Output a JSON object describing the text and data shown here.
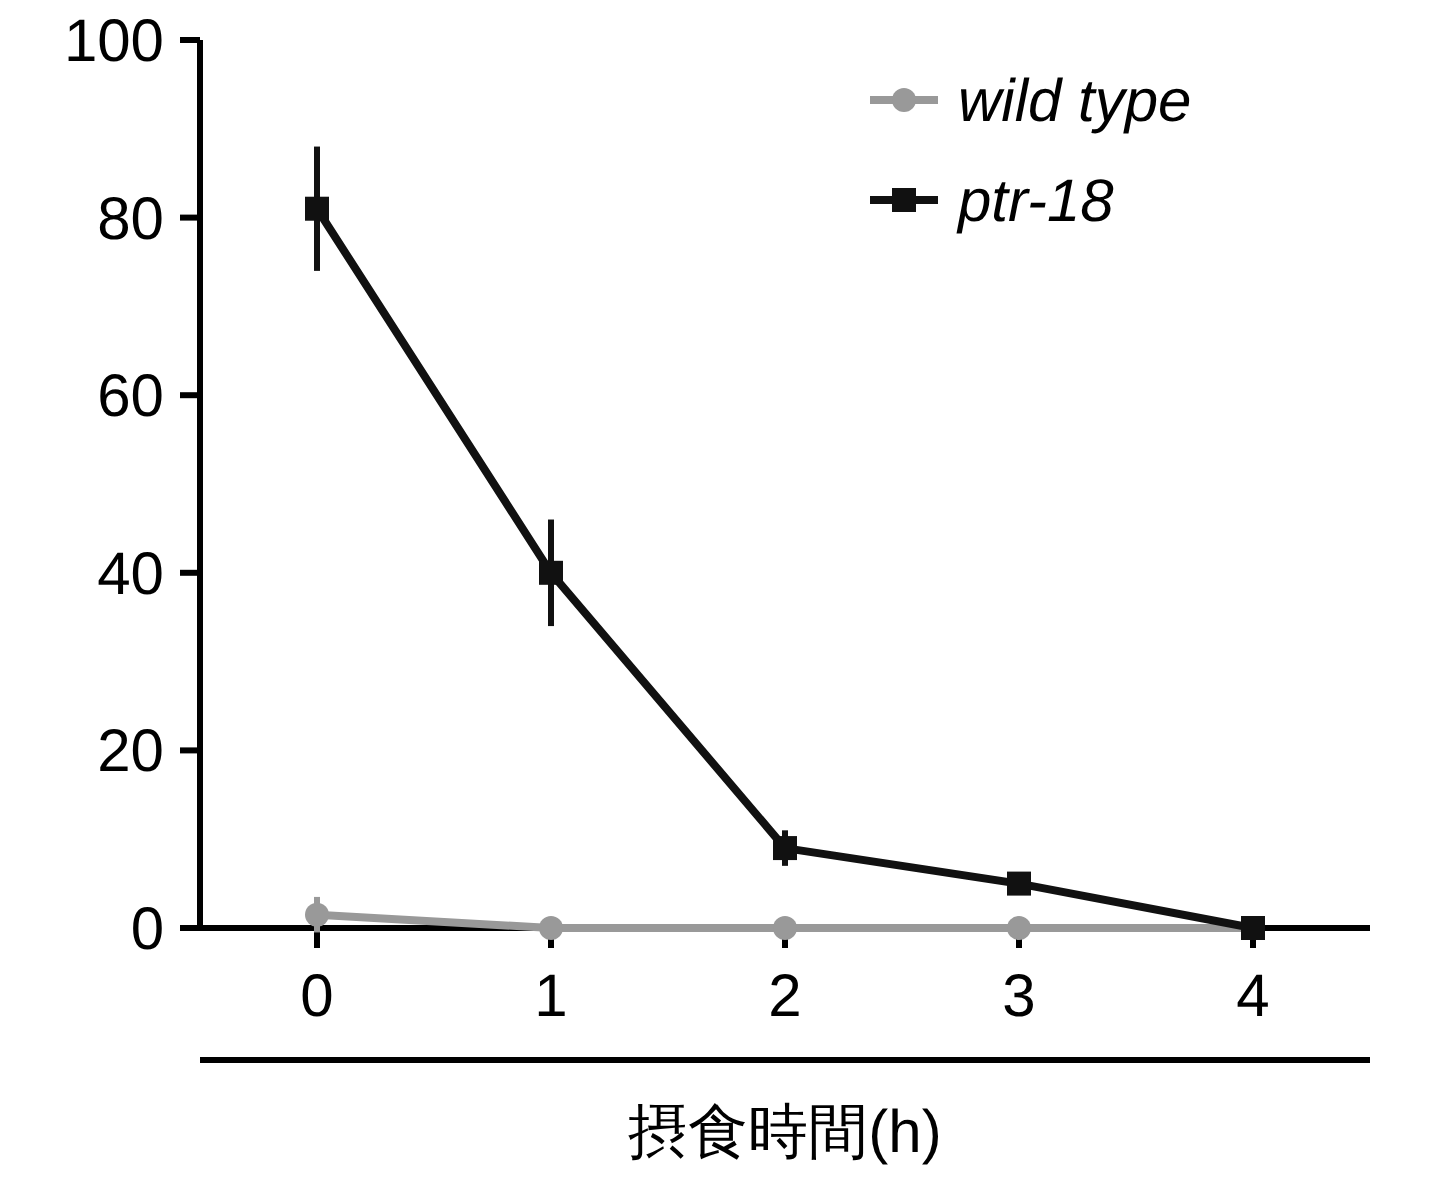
{
  "chart_data": {
    "type": "line",
    "xlabel": "摂食時間(h)",
    "x": [
      0,
      1,
      2,
      3,
      4
    ],
    "xlim": [
      -0.5,
      4.5
    ],
    "xticks": [
      0,
      1,
      2,
      3,
      4
    ],
    "ylim": [
      0,
      100
    ],
    "yticks": [
      0,
      20,
      40,
      60,
      80,
      100
    ],
    "grid": false,
    "legend": "top right",
    "line_style": "solid",
    "series": [
      {
        "name": "wild type",
        "color": "#999999",
        "marker": "circle",
        "values": [
          1.5,
          0,
          0,
          0,
          0
        ],
        "errors": [
          2,
          null,
          null,
          null,
          null
        ]
      },
      {
        "name": "ptr-18",
        "color": "#111111",
        "marker": "square",
        "values": [
          81,
          40,
          9,
          5,
          0
        ],
        "errors": [
          7,
          6,
          2,
          1,
          null
        ]
      }
    ]
  }
}
